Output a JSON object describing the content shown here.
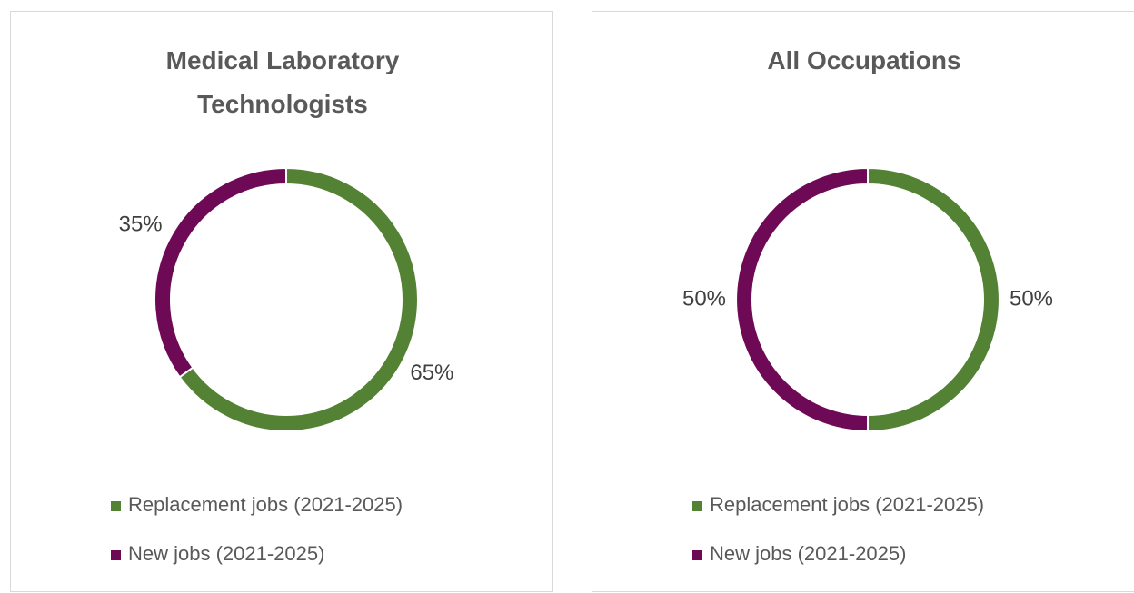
{
  "chart_data": [
    {
      "type": "donut",
      "title": "Medical Laboratory Technologists",
      "categories": [
        "Replacement jobs (2021-2025)",
        "New jobs (2021-2025)"
      ],
      "values": [
        65,
        35
      ],
      "value_labels": [
        "65%",
        "35%"
      ],
      "colors": [
        "#548235",
        "#6e0a55"
      ]
    },
    {
      "type": "donut",
      "title": "All Occupations",
      "categories": [
        "Replacement jobs (2021-2025)",
        "New jobs (2021-2025)"
      ],
      "values": [
        50,
        50
      ],
      "value_labels": [
        "50%",
        "50%"
      ],
      "colors": [
        "#548235",
        "#6e0a55"
      ]
    }
  ]
}
